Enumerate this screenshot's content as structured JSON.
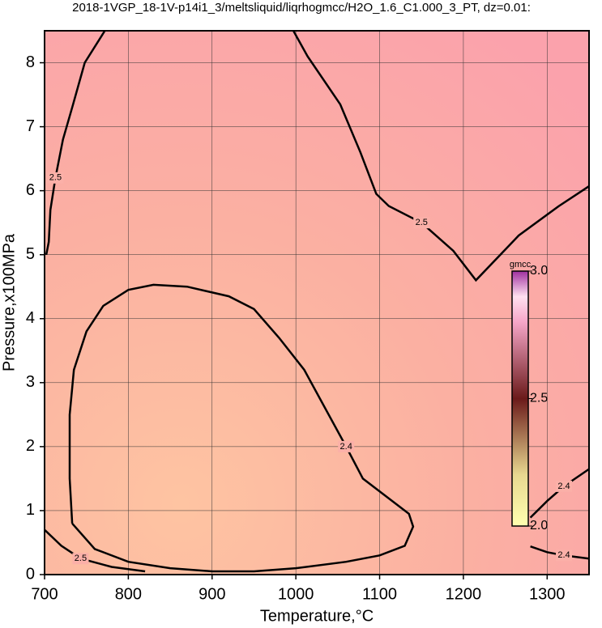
{
  "chart_data": {
    "type": "contour",
    "title": "2018-1VGP_18-1V-p14i1_3/meltsliquid/liqrhogmcc/H2O_1.6_C1.000_3_PT, dz=0.01:",
    "x_label": "Temperature,°C",
    "y_label": "Pressure,x100MPa",
    "xlim": [
      700,
      1350
    ],
    "ylim": [
      0,
      8.5
    ],
    "xticks": [
      700,
      800,
      900,
      1000,
      1100,
      1200,
      1300
    ],
    "yticks": [
      0,
      1,
      2,
      3,
      4,
      5,
      6,
      7,
      8
    ],
    "grid": true,
    "line_color": "#000000",
    "contours": [
      {
        "level": 2.4,
        "x": [
          733,
          730,
          730,
          735,
          750,
          770,
          800,
          830,
          870,
          920,
          950,
          980,
          1010,
          1035,
          1060,
          1080,
          1110,
          1135,
          1140,
          1130,
          1100,
          1060,
          1000,
          950,
          900,
          850,
          800,
          760,
          733
        ],
        "y": [
          0.8,
          1.5,
          2.5,
          3.2,
          3.8,
          4.2,
          4.45,
          4.53,
          4.5,
          4.35,
          4.15,
          3.7,
          3.2,
          2.6,
          2.0,
          1.5,
          1.2,
          0.95,
          0.75,
          0.45,
          0.3,
          0.2,
          0.1,
          0.05,
          0.05,
          0.1,
          0.2,
          0.4,
          0.8
        ]
      },
      {
        "level": 2.4,
        "x": [
          1280,
          1300,
          1320,
          1350
        ],
        "y": [
          0.89,
          1.15,
          1.38,
          1.65
        ]
      },
      {
        "level": 2.4,
        "x": [
          1280,
          1300,
          1320,
          1350
        ],
        "y": [
          0.44,
          0.35,
          0.3,
          0.25
        ]
      },
      {
        "level": 2.5,
        "x": [
          772,
          748,
          734,
          722,
          713,
          707,
          705,
          702
        ],
        "y": [
          8.5,
          8.0,
          7.35,
          6.8,
          6.2,
          5.7,
          5.2,
          5.0
        ]
      },
      {
        "level": 2.5,
        "x": [
          997,
          1014,
          1053,
          1077,
          1096,
          1111,
          1150,
          1188,
          1215,
          1266,
          1314,
          1350
        ],
        "y": [
          8.5,
          8.1,
          7.35,
          6.6,
          5.95,
          5.76,
          5.5,
          5.06,
          4.6,
          5.3,
          5.76,
          6.07
        ]
      },
      {
        "level": 2.5,
        "x": [
          700,
          720,
          743,
          780,
          820
        ],
        "y": [
          0.7,
          0.45,
          0.25,
          0.12,
          0.05
        ]
      }
    ],
    "colorbar": {
      "label": "gmcc",
      "lim": [
        2.0,
        3.0
      ],
      "ticks": [
        {
          "value": 2.0,
          "label": "2.0"
        },
        2.5,
        {
          "value": 3.0,
          "label": "3.0"
        }
      ]
    }
  }
}
